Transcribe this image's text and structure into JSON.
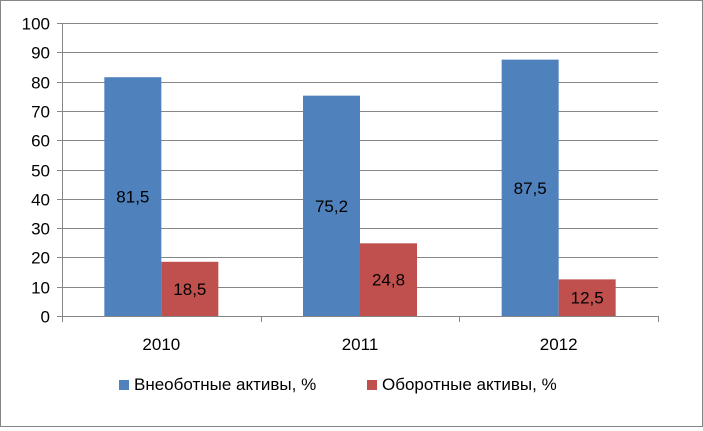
{
  "chart_data": {
    "type": "bar",
    "categories": [
      "2010",
      "2011",
      "2012"
    ],
    "series": [
      {
        "name": "Внеоботные активы, %",
        "color": "#4F81BD",
        "values": [
          81.5,
          75.2,
          87.5
        ],
        "labels": [
          "81,5",
          "75,2",
          "87,5"
        ]
      },
      {
        "name": "Оборотные активы, %",
        "color": "#C0504D",
        "values": [
          18.5,
          24.8,
          12.5
        ],
        "labels": [
          "18,5",
          "24,8",
          "12,5"
        ]
      }
    ],
    "ylim": [
      0,
      100
    ],
    "yticks": [
      "0",
      "10",
      "20",
      "30",
      "40",
      "50",
      "60",
      "70",
      "80",
      "90",
      "100"
    ],
    "title": "",
    "xlabel": "",
    "ylabel": "",
    "grid": true,
    "legend_position": "bottom"
  }
}
